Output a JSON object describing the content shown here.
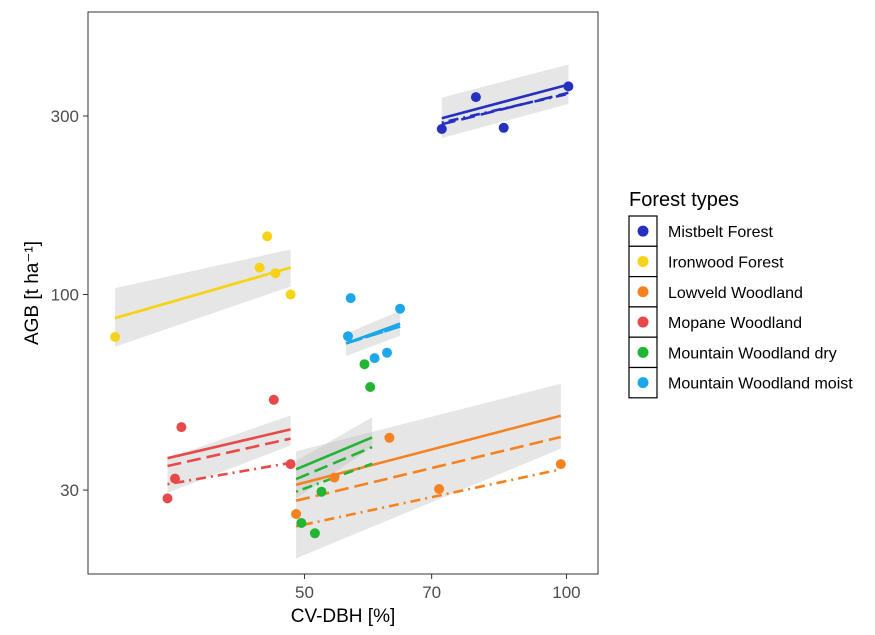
{
  "chart_data": {
    "type": "scatter",
    "xlabel": "CV-DBH [%]",
    "ylabel": "AGB [t ha⁻¹]",
    "x_scale": "log",
    "y_scale": "log",
    "xlim": [
      28.2,
      108.7
    ],
    "ylim": [
      17.9,
      569
    ],
    "x_ticks": [
      50,
      70,
      100
    ],
    "x_tick_labels": [
      "50",
      "70",
      "100"
    ],
    "y_ticks": [
      30,
      100,
      300
    ],
    "y_tick_labels": [
      "30",
      "100",
      "300"
    ],
    "grid": false,
    "legend": {
      "title": "Forest types",
      "position": "right"
    },
    "series": [
      {
        "name": "Mistbelt Forest",
        "color": "#2630c0",
        "points": [
          [
            71.9,
            277
          ],
          [
            78.7,
            337
          ],
          [
            84.7,
            279
          ],
          [
            100.5,
            360
          ]
        ],
        "x_range": [
          71.9,
          100.5
        ],
        "fit_solid": [
          296,
          364
        ],
        "fit_dashed": [
          285,
          346
        ],
        "fit_dotdash": [
          288,
          344
        ],
        "band": [
          [
            262,
            336
          ],
          [
            323,
            412
          ]
        ]
      },
      {
        "name": "Ironwood Forest",
        "color": "#f6d316",
        "points": [
          [
            30.3,
            77
          ],
          [
            44.4,
            118
          ],
          [
            45.3,
            143
          ],
          [
            46.3,
            114
          ],
          [
            48.2,
            100
          ]
        ],
        "x_range": [
          30.3,
          48.2
        ],
        "fit_solid": [
          86.5,
          118
        ],
        "fit_dashed": [
          86.5,
          118
        ],
        "fit_dotdash": [
          86.5,
          118
        ],
        "band": [
          [
            72.5,
            104
          ],
          [
            105,
            132
          ]
        ]
      },
      {
        "name": "Lowveld Woodland",
        "color": "#f5821f",
        "points": [
          [
            48.9,
            25.9
          ],
          [
            54.1,
            32.4
          ],
          [
            62.6,
            41.4
          ],
          [
            71.4,
            30.2
          ],
          [
            98.5,
            35.2
          ]
        ],
        "x_range": [
          48.9,
          98.5
        ],
        "fit_solid": [
          31,
          47.4
        ],
        "fit_dashed": [
          28.1,
          41.6
        ],
        "fit_dotdash": [
          24,
          34.1
        ],
        "band": [
          [
            19.7,
            38.1
          ],
          [
            38.7,
            57.7
          ]
        ]
      },
      {
        "name": "Mopane Woodland",
        "color": "#e84a4a",
        "points": [
          [
            34.8,
            28.5
          ],
          [
            35.5,
            32.2
          ],
          [
            36.1,
            44.2
          ],
          [
            46.1,
            52.3
          ],
          [
            48.2,
            35.2
          ]
        ],
        "x_range": [
          34.8,
          48.2
        ],
        "fit_solid": [
          36.5,
          43.6
        ],
        "fit_dashed": [
          34.8,
          41.2
        ],
        "fit_dotdash": [
          31.1,
          35.5
        ],
        "band": [
          [
            29.5,
            36.5
          ],
          [
            39.5,
            47.5
          ]
        ]
      },
      {
        "name": "Mountain Woodland dry",
        "color": "#21b534",
        "points": [
          [
            49.6,
            24.5
          ],
          [
            51.4,
            23
          ],
          [
            52.3,
            29.7
          ],
          [
            58.6,
            65.1
          ],
          [
            59.5,
            56.6
          ]
        ],
        "x_range": [
          48.9,
          59.8
        ],
        "fit_solid": [
          34.1,
          41.5
        ],
        "fit_dashed": [
          32.1,
          39.1
        ],
        "fit_dotdash": [
          29.7,
          35.3
        ],
        "band": [
          [
            28.5,
            35.9
          ],
          [
            39.1,
            47
          ]
        ]
      },
      {
        "name": "Mountain Woodland moist",
        "color": "#1ba7e8",
        "points": [
          [
            56.1,
            77.3
          ],
          [
            56.5,
            97.8
          ],
          [
            60.2,
            67.6
          ],
          [
            62.2,
            69.9
          ],
          [
            64.4,
            91.6
          ]
        ],
        "x_range": [
          55.8,
          64.4
        ],
        "fit_solid": [
          74,
          83.6
        ],
        "fit_dashed": [
          74,
          82.1
        ],
        "fit_dotdash": [
          74,
          82.1
        ],
        "band": [
          [
            68.5,
            78.5
          ],
          [
            77.5,
            90.5
          ]
        ]
      }
    ]
  }
}
